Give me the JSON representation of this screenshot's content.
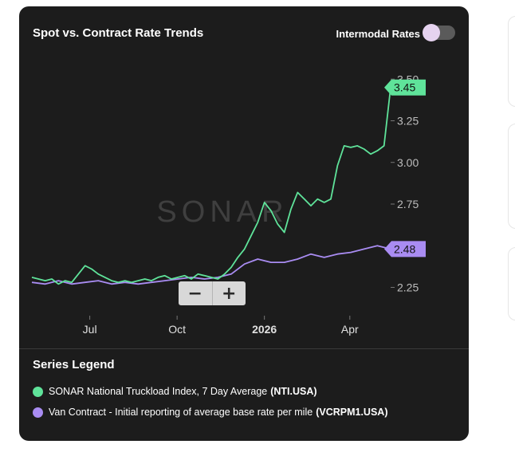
{
  "card": {
    "title": "Spot vs. Contract Rate Trends",
    "toggle_label": "Intermodal Rates",
    "toggle_on": false
  },
  "zoom": {
    "minus_label": "−",
    "plus_label": "+"
  },
  "watermark": "SONAR",
  "legend": {
    "title": "Series Legend",
    "items": [
      {
        "text": "SONAR National Truckload Index, 7 Day Average",
        "code": "(NTI.USA)",
        "color": "#5fe39a"
      },
      {
        "text": "Van Contract - Initial reporting of average base rate per mile",
        "code": "(VCRPM1.USA)",
        "color": "#a98cf2"
      }
    ]
  },
  "chart_data": {
    "type": "line",
    "xlabel": "",
    "ylabel": "",
    "x_ticks": [
      "Jul",
      "Oct",
      "2026",
      "Apr"
    ],
    "y_ticks": [
      "2.25",
      "2.50",
      "2.75",
      "3.00",
      "3.25",
      "3.50"
    ],
    "ylim": [
      2.08,
      3.53
    ],
    "grid": false,
    "series": [
      {
        "name": "SONAR National Truckload Index, 7 Day Average",
        "code": "NTI.USA",
        "color": "#5fe39a",
        "last_value_label": "3.45",
        "points": [
          [
            "2025-05-01",
            2.31
          ],
          [
            "2025-05-08",
            2.3
          ],
          [
            "2025-05-15",
            2.29
          ],
          [
            "2025-05-22",
            2.3
          ],
          [
            "2025-05-29",
            2.27
          ],
          [
            "2025-06-05",
            2.29
          ],
          [
            "2025-06-12",
            2.28
          ],
          [
            "2025-06-19",
            2.33
          ],
          [
            "2025-06-26",
            2.38
          ],
          [
            "2025-07-03",
            2.36
          ],
          [
            "2025-07-10",
            2.33
          ],
          [
            "2025-07-17",
            2.31
          ],
          [
            "2025-07-24",
            2.29
          ],
          [
            "2025-07-31",
            2.28
          ],
          [
            "2025-08-07",
            2.29
          ],
          [
            "2025-08-14",
            2.28
          ],
          [
            "2025-08-21",
            2.29
          ],
          [
            "2025-08-28",
            2.3
          ],
          [
            "2025-09-04",
            2.29
          ],
          [
            "2025-09-11",
            2.31
          ],
          [
            "2025-09-18",
            2.32
          ],
          [
            "2025-09-25",
            2.3
          ],
          [
            "2025-10-02",
            2.31
          ],
          [
            "2025-10-09",
            2.32
          ],
          [
            "2025-10-16",
            2.3
          ],
          [
            "2025-10-23",
            2.33
          ],
          [
            "2025-10-30",
            2.32
          ],
          [
            "2025-11-06",
            2.31
          ],
          [
            "2025-11-13",
            2.3
          ],
          [
            "2025-11-20",
            2.33
          ],
          [
            "2025-11-27",
            2.37
          ],
          [
            "2025-12-04",
            2.43
          ],
          [
            "2025-12-11",
            2.48
          ],
          [
            "2025-12-18",
            2.56
          ],
          [
            "2025-12-25",
            2.64
          ],
          [
            "2026-01-01",
            2.76
          ],
          [
            "2026-01-08",
            2.71
          ],
          [
            "2026-01-15",
            2.63
          ],
          [
            "2026-01-22",
            2.58
          ],
          [
            "2026-01-29",
            2.72
          ],
          [
            "2026-02-05",
            2.82
          ],
          [
            "2026-02-12",
            2.78
          ],
          [
            "2026-02-19",
            2.74
          ],
          [
            "2026-02-26",
            2.78
          ],
          [
            "2026-03-05",
            2.76
          ],
          [
            "2026-03-12",
            2.78
          ],
          [
            "2026-03-19",
            2.98
          ],
          [
            "2026-03-26",
            3.1
          ],
          [
            "2026-04-02",
            3.09
          ],
          [
            "2026-04-09",
            3.1
          ],
          [
            "2026-04-16",
            3.08
          ],
          [
            "2026-04-23",
            3.05
          ],
          [
            "2026-04-30",
            3.07
          ],
          [
            "2026-05-07",
            3.1
          ],
          [
            "2026-05-14",
            3.45
          ]
        ]
      },
      {
        "name": "Van Contract - Initial reporting of average base rate per mile",
        "code": "VCRPM1.USA",
        "color": "#a98cf2",
        "last_value_label": "2.48",
        "points": [
          [
            "2025-05-01",
            2.28
          ],
          [
            "2025-05-15",
            2.27
          ],
          [
            "2025-05-29",
            2.29
          ],
          [
            "2025-06-12",
            2.27
          ],
          [
            "2025-06-26",
            2.28
          ],
          [
            "2025-07-10",
            2.29
          ],
          [
            "2025-07-24",
            2.27
          ],
          [
            "2025-08-07",
            2.28
          ],
          [
            "2025-08-21",
            2.27
          ],
          [
            "2025-09-04",
            2.28
          ],
          [
            "2025-09-18",
            2.29
          ],
          [
            "2025-10-02",
            2.3
          ],
          [
            "2025-10-16",
            2.31
          ],
          [
            "2025-10-30",
            2.3
          ],
          [
            "2025-11-13",
            2.31
          ],
          [
            "2025-11-27",
            2.33
          ],
          [
            "2025-12-11",
            2.39
          ],
          [
            "2025-12-25",
            2.42
          ],
          [
            "2026-01-08",
            2.4
          ],
          [
            "2026-01-22",
            2.4
          ],
          [
            "2026-02-05",
            2.42
          ],
          [
            "2026-02-19",
            2.45
          ],
          [
            "2026-03-05",
            2.43
          ],
          [
            "2026-03-19",
            2.45
          ],
          [
            "2026-04-02",
            2.46
          ],
          [
            "2026-04-16",
            2.48
          ],
          [
            "2026-04-30",
            2.5
          ],
          [
            "2026-05-14",
            2.48
          ]
        ]
      }
    ]
  }
}
